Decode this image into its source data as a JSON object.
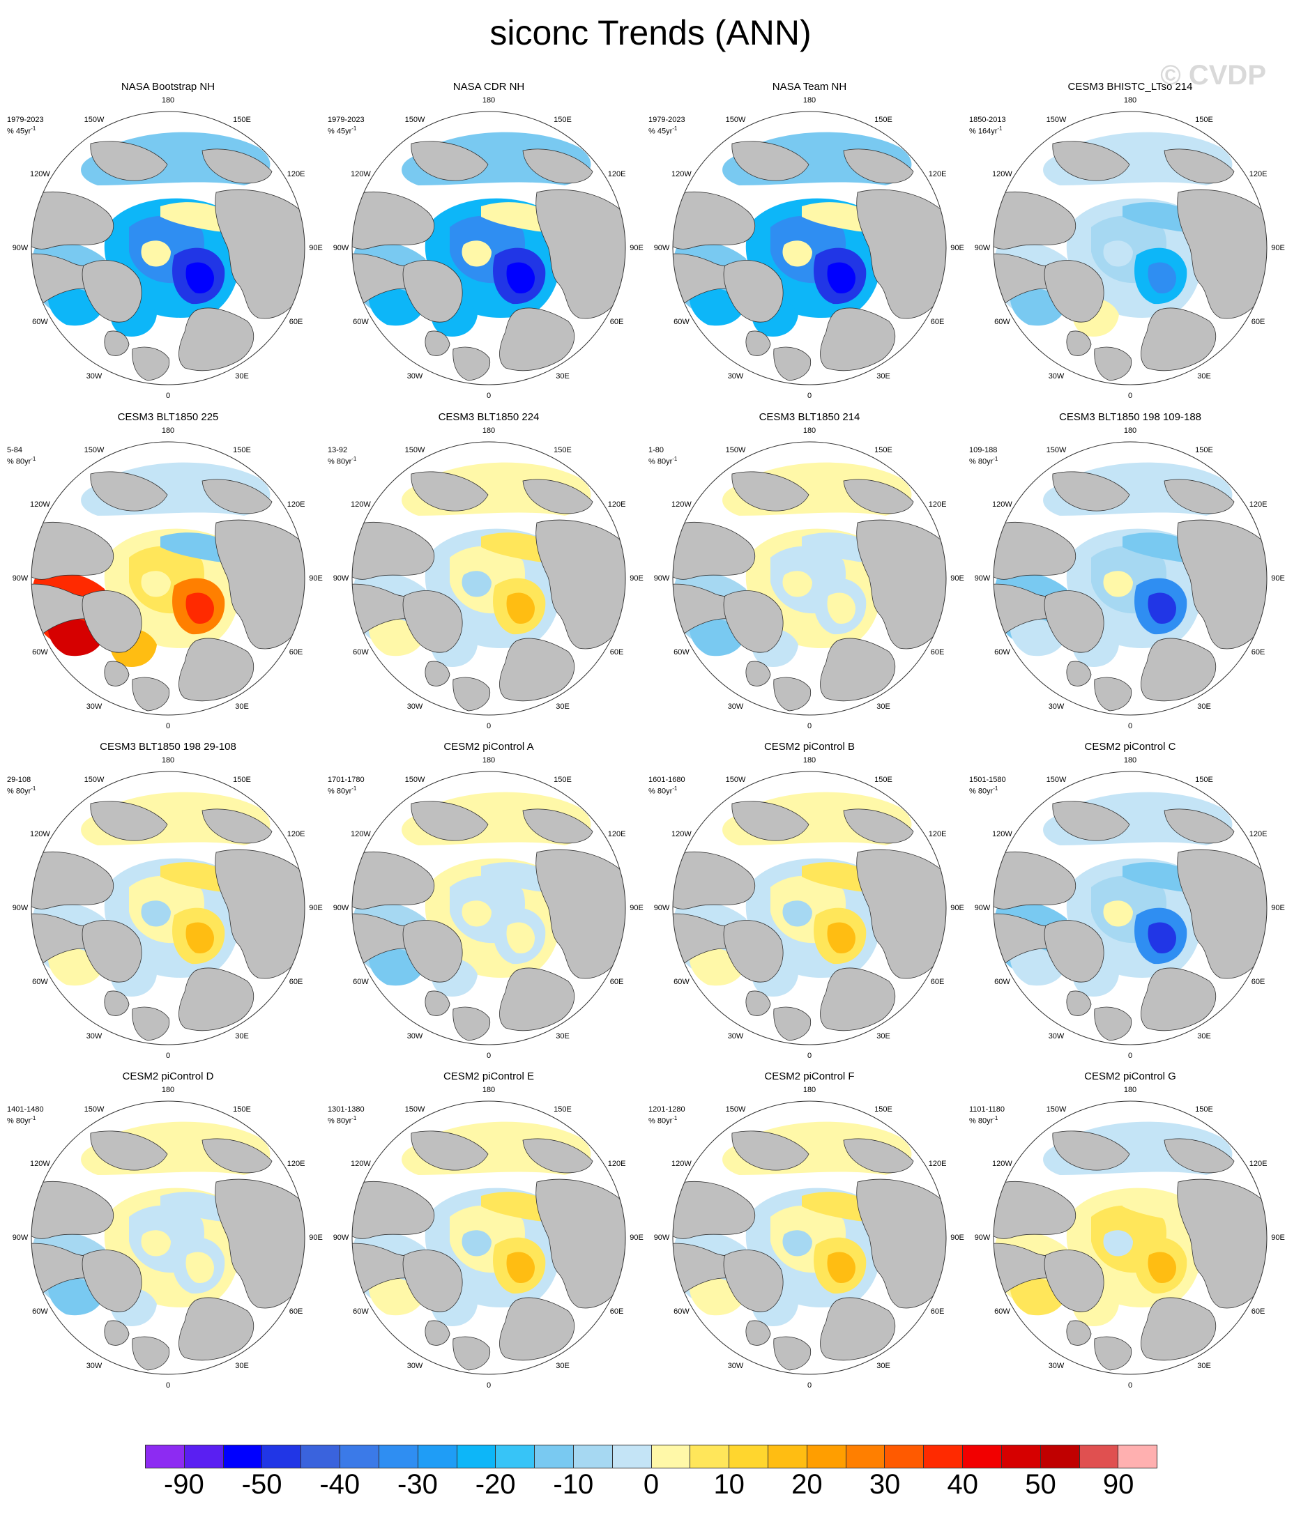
{
  "title": "siconc Trends (ANN)",
  "watermark": "© CVDP",
  "lon_labels": [
    "180",
    "150E",
    "120E",
    "90E",
    "60E",
    "30E",
    "0",
    "30W",
    "60W",
    "90W",
    "120W",
    "150W"
  ],
  "panels": [
    {
      "title": "NASA Bootstrap NH",
      "period": "1979-2023",
      "unit": "% 45yr",
      "unit_sup": "-1",
      "pattern": "obs"
    },
    {
      "title": "NASA CDR NH",
      "period": "1979-2023",
      "unit": "% 45yr",
      "unit_sup": "-1",
      "pattern": "obs"
    },
    {
      "title": "NASA Team NH",
      "period": "1979-2023",
      "unit": "% 45yr",
      "unit_sup": "-1",
      "pattern": "obs"
    },
    {
      "title": "CESM3 BHISTC_LTso 214",
      "period": "1850-2013",
      "unit": "% 164yr",
      "unit_sup": "-1",
      "pattern": "hist"
    },
    {
      "title": "CESM3 BLT1850 225",
      "period": "5-84",
      "unit": "% 80yr",
      "unit_sup": "-1",
      "pattern": "strong-pos"
    },
    {
      "title": "CESM3 BLT1850 224",
      "period": "13-92",
      "unit": "% 80yr",
      "unit_sup": "-1",
      "pattern": "mild-pos"
    },
    {
      "title": "CESM3 BLT1850 214",
      "period": "1-80",
      "unit": "% 80yr",
      "unit_sup": "-1",
      "pattern": "mixed"
    },
    {
      "title": "CESM3 BLT1850 198 109-188",
      "period": "109-188",
      "unit": "% 80yr",
      "unit_sup": "-1",
      "pattern": "neg"
    },
    {
      "title": "CESM3 BLT1850 198 29-108",
      "period": "29-108",
      "unit": "% 80yr",
      "unit_sup": "-1",
      "pattern": "mild-pos"
    },
    {
      "title": "CESM2 piControl A",
      "period": "1701-1780",
      "unit": "% 80yr",
      "unit_sup": "-1",
      "pattern": "mixed"
    },
    {
      "title": "CESM2 piControl B",
      "period": "1601-1680",
      "unit": "% 80yr",
      "unit_sup": "-1",
      "pattern": "mild-pos"
    },
    {
      "title": "CESM2 piControl C",
      "period": "1501-1580",
      "unit": "% 80yr",
      "unit_sup": "-1",
      "pattern": "neg"
    },
    {
      "title": "CESM2 piControl D",
      "period": "1401-1480",
      "unit": "% 80yr",
      "unit_sup": "-1",
      "pattern": "mixed"
    },
    {
      "title": "CESM2 piControl E",
      "period": "1301-1380",
      "unit": "% 80yr",
      "unit_sup": "-1",
      "pattern": "mild-pos"
    },
    {
      "title": "CESM2 piControl F",
      "period": "1201-1280",
      "unit": "% 80yr",
      "unit_sup": "-1",
      "pattern": "mild-pos"
    },
    {
      "title": "CESM2 piControl G",
      "period": "1101-1180",
      "unit": "% 80yr",
      "unit_sup": "-1",
      "pattern": "pos"
    }
  ],
  "colorbar": {
    "colors": [
      "#8d2bf2",
      "#5a1ff2",
      "#0000ff",
      "#2136e6",
      "#3a63dd",
      "#3b7ae8",
      "#2f8ef2",
      "#1f9df6",
      "#0db6f8",
      "#37c4f7",
      "#79c9f1",
      "#a6d8f2",
      "#c4e4f6",
      "#fff8a8",
      "#ffe65a",
      "#ffd62e",
      "#ffbd12",
      "#ff9e00",
      "#ff7f00",
      "#ff5a00",
      "#ff2a00",
      "#f20000",
      "#d60000",
      "#c00000",
      "#e05050",
      "#ffb0b0"
    ],
    "labels": [
      "-90",
      "-50",
      "-40",
      "-30",
      "-20",
      "-10",
      "0",
      "10",
      "20",
      "30",
      "40",
      "50",
      "90"
    ]
  },
  "colors": {
    "land": "#bfbfbf",
    "ocean": "#ffffff",
    "outline": "#333333"
  }
}
